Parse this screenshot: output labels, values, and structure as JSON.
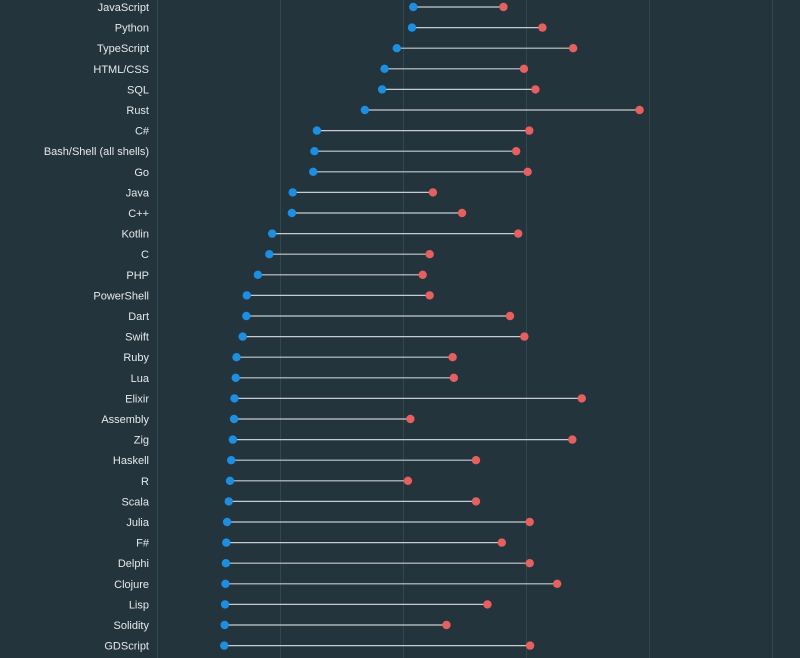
{
  "chart_data": {
    "type": "dumbbell",
    "title": "",
    "xlabel": "",
    "ylabel": "",
    "xlim": [
      0,
      100
    ],
    "grid": true,
    "series": [
      {
        "color": "#1c8fe3"
      },
      {
        "color": "#e5605f"
      }
    ],
    "categories": [
      {
        "label": "JavaScript",
        "start": 62.5,
        "end": 84.5
      },
      {
        "label": "Python",
        "start": 62.2,
        "end": 94.0
      },
      {
        "label": "TypeScript",
        "start": 58.5,
        "end": 101.5
      },
      {
        "label": "HTML/CSS",
        "start": 55.5,
        "end": 89.5
      },
      {
        "label": "SQL",
        "start": 54.9,
        "end": 92.3
      },
      {
        "label": "Rust",
        "start": 50.7,
        "end": 117.7
      },
      {
        "label": "C#",
        "start": 39.0,
        "end": 90.8
      },
      {
        "label": "Bash/Shell (all shells)",
        "start": 38.4,
        "end": 87.6
      },
      {
        "label": "Go",
        "start": 38.1,
        "end": 90.4
      },
      {
        "label": "Java",
        "start": 33.1,
        "end": 67.3
      },
      {
        "label": "C++",
        "start": 32.9,
        "end": 74.4
      },
      {
        "label": "Kotlin",
        "start": 28.1,
        "end": 88.1
      },
      {
        "label": "C",
        "start": 27.4,
        "end": 66.5
      },
      {
        "label": "PHP",
        "start": 24.6,
        "end": 64.8
      },
      {
        "label": "PowerShell",
        "start": 21.9,
        "end": 66.5
      },
      {
        "label": "Dart",
        "start": 21.8,
        "end": 86.1
      },
      {
        "label": "Swift",
        "start": 20.9,
        "end": 89.6
      },
      {
        "label": "Ruby",
        "start": 19.4,
        "end": 72.1
      },
      {
        "label": "Lua",
        "start": 19.2,
        "end": 72.4
      },
      {
        "label": "Elixir",
        "start": 18.9,
        "end": 103.6
      },
      {
        "label": "Assembly",
        "start": 18.8,
        "end": 61.8
      },
      {
        "label": "Zig",
        "start": 18.5,
        "end": 101.3
      },
      {
        "label": "Haskell",
        "start": 18.1,
        "end": 77.8
      },
      {
        "label": "R",
        "start": 17.8,
        "end": 61.2
      },
      {
        "label": "Scala",
        "start": 17.5,
        "end": 77.8
      },
      {
        "label": "Julia",
        "start": 17.1,
        "end": 90.9
      },
      {
        "label": "F#",
        "start": 16.9,
        "end": 84.1
      },
      {
        "label": "Delphi",
        "start": 16.8,
        "end": 90.9
      },
      {
        "label": "Clojure",
        "start": 16.7,
        "end": 97.6
      },
      {
        "label": "Lisp",
        "start": 16.6,
        "end": 80.6
      },
      {
        "label": "Solidity",
        "start": 16.5,
        "end": 70.6
      },
      {
        "label": "GDScript",
        "start": 16.4,
        "end": 91.0
      }
    ]
  }
}
